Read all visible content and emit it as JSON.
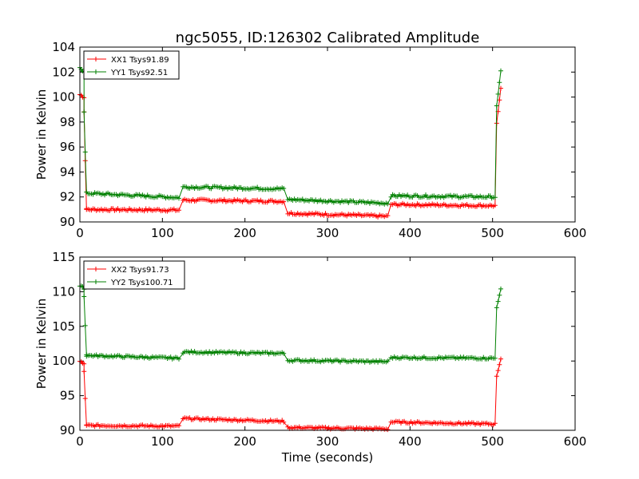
{
  "chart_data": [
    {
      "type": "line",
      "title": "ngc5055, ID:126302 Calibrated Amplitude",
      "xlabel": "",
      "ylabel": "Power in Kelvin",
      "xlim": [
        0,
        600
      ],
      "ylim": [
        90,
        104
      ],
      "xticks": [
        0,
        100,
        200,
        300,
        400,
        500,
        600
      ],
      "yticks": [
        90,
        92,
        94,
        96,
        98,
        100,
        102,
        104
      ],
      "legend_position": "top-left",
      "grid": false,
      "series": [
        {
          "name": "XX1 Tsys91.89",
          "color": "#ff0000",
          "segments": [
            {
              "x0": 0,
              "x1": 5,
              "v0": 100.2,
              "v1": 100.0,
              "jitter": 0.1
            },
            {
              "x0": 5,
              "x1": 8,
              "v0": 98.8,
              "v1": 91.0,
              "jitter": 0
            },
            {
              "x0": 8,
              "x1": 120,
              "v0": 91.0,
              "v1": 90.95,
              "jitter": 0.1
            },
            {
              "x0": 125,
              "x1": 247,
              "v0": 91.75,
              "v1": 91.65,
              "jitter": 0.1
            },
            {
              "x0": 252,
              "x1": 373,
              "v0": 90.7,
              "v1": 90.45,
              "jitter": 0.1
            },
            {
              "x0": 377,
              "x1": 503,
              "v0": 91.4,
              "v1": 91.3,
              "jitter": 0.1
            },
            {
              "x0": 505,
              "x1": 510,
              "v0": 97.9,
              "v1": 100.7,
              "jitter": 0
            }
          ]
        },
        {
          "name": "YY1 Tsys92.51",
          "color": "#008000",
          "segments": [
            {
              "x0": 0,
              "x1": 5,
              "v0": 102.3,
              "v1": 102.1,
              "jitter": 0.1
            },
            {
              "x0": 5,
              "x1": 8,
              "v0": 98.8,
              "v1": 92.4,
              "jitter": 0
            },
            {
              "x0": 8,
              "x1": 120,
              "v0": 92.3,
              "v1": 91.95,
              "jitter": 0.1
            },
            {
              "x0": 125,
              "x1": 247,
              "v0": 92.8,
              "v1": 92.65,
              "jitter": 0.1
            },
            {
              "x0": 252,
              "x1": 373,
              "v0": 91.8,
              "v1": 91.5,
              "jitter": 0.1
            },
            {
              "x0": 377,
              "x1": 503,
              "v0": 92.1,
              "v1": 92.0,
              "jitter": 0.1
            },
            {
              "x0": 505,
              "x1": 510,
              "v0": 99.3,
              "v1": 102.1,
              "jitter": 0
            }
          ]
        }
      ]
    },
    {
      "type": "line",
      "title": "",
      "xlabel": "Time (seconds)",
      "ylabel": "Power in Kelvin",
      "xlim": [
        0,
        600
      ],
      "ylim": [
        90,
        115
      ],
      "xticks": [
        0,
        100,
        200,
        300,
        400,
        500,
        600
      ],
      "yticks": [
        90,
        95,
        100,
        105,
        110,
        115
      ],
      "legend_position": "top-left",
      "grid": false,
      "series": [
        {
          "name": "XX2 Tsys91.73",
          "color": "#ff0000",
          "segments": [
            {
              "x0": 0,
              "x1": 5,
              "v0": 100.0,
              "v1": 99.5,
              "jitter": 0.15
            },
            {
              "x0": 5,
              "x1": 8,
              "v0": 98.5,
              "v1": 90.7,
              "jitter": 0
            },
            {
              "x0": 8,
              "x1": 120,
              "v0": 90.7,
              "v1": 90.6,
              "jitter": 0.15
            },
            {
              "x0": 125,
              "x1": 247,
              "v0": 91.7,
              "v1": 91.3,
              "jitter": 0.15
            },
            {
              "x0": 252,
              "x1": 373,
              "v0": 90.4,
              "v1": 90.2,
              "jitter": 0.15
            },
            {
              "x0": 377,
              "x1": 503,
              "v0": 91.2,
              "v1": 90.9,
              "jitter": 0.15
            },
            {
              "x0": 505,
              "x1": 510,
              "v0": 97.8,
              "v1": 100.3,
              "jitter": 0
            }
          ]
        },
        {
          "name": "YY2 Tsys100.71",
          "color": "#008000",
          "segments": [
            {
              "x0": 0,
              "x1": 5,
              "v0": 110.8,
              "v1": 110.5,
              "jitter": 0.15
            },
            {
              "x0": 5,
              "x1": 8,
              "v0": 109.3,
              "v1": 100.9,
              "jitter": 0
            },
            {
              "x0": 8,
              "x1": 120,
              "v0": 100.8,
              "v1": 100.4,
              "jitter": 0.15
            },
            {
              "x0": 125,
              "x1": 247,
              "v0": 101.3,
              "v1": 101.1,
              "jitter": 0.15
            },
            {
              "x0": 252,
              "x1": 373,
              "v0": 100.1,
              "v1": 99.9,
              "jitter": 0.15
            },
            {
              "x0": 377,
              "x1": 503,
              "v0": 100.5,
              "v1": 100.4,
              "jitter": 0.15
            },
            {
              "x0": 505,
              "x1": 510,
              "v0": 107.7,
              "v1": 110.4,
              "jitter": 0
            }
          ]
        }
      ]
    }
  ]
}
